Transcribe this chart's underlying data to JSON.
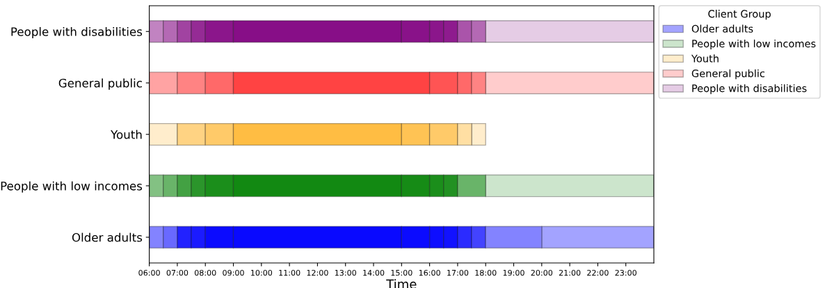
{
  "chart_data": {
    "type": "bar",
    "orientation": "horizontal",
    "xlabel": "Time",
    "legend_title": "Client Group",
    "legend": "top right",
    "grid": false,
    "categories": [
      "People with disabilities",
      "General public",
      "Youth",
      "People with low incomes",
      "Older adults"
    ],
    "xlim": [
      6,
      24
    ],
    "xticks": [
      {
        "value": 6,
        "label": "06:00"
      },
      {
        "value": 7,
        "label": "07:00"
      },
      {
        "value": 8,
        "label": "08:00"
      },
      {
        "value": 9,
        "label": "09:00"
      },
      {
        "value": 10,
        "label": "10:00"
      },
      {
        "value": 11,
        "label": "11:00"
      },
      {
        "value": 12,
        "label": "12:00"
      },
      {
        "value": 13,
        "label": "13:00"
      },
      {
        "value": 14,
        "label": "14:00"
      },
      {
        "value": 15,
        "label": "15:00"
      },
      {
        "value": 16,
        "label": "16:00"
      },
      {
        "value": 17,
        "label": "17:00"
      },
      {
        "value": 18,
        "label": "18:00"
      },
      {
        "value": 19,
        "label": "19:00"
      },
      {
        "value": 20,
        "label": "20:00"
      },
      {
        "value": 21,
        "label": "21:00"
      },
      {
        "value": 22,
        "label": "22:00"
      },
      {
        "value": 23,
        "label": "23:00"
      }
    ],
    "series": [
      {
        "name": "Older adults",
        "color": "#a3a3ff",
        "base": [
          null,
          null,
          null,
          null,
          20
        ],
        "values": [
          null,
          null,
          null,
          null,
          4
        ]
      },
      {
        "name": "People with low incomes",
        "color": "#cce5cc",
        "base": [
          null,
          null,
          null,
          18,
          null
        ],
        "values": [
          null,
          null,
          null,
          6,
          null
        ]
      },
      {
        "name": "Youth",
        "color": "#ffedcc",
        "base": [
          null,
          null,
          17.5,
          null,
          null
        ],
        "values": [
          null,
          null,
          0.5,
          null,
          null
        ]
      },
      {
        "name": "General public",
        "color": "#ffcccc",
        "base": [
          null,
          18,
          null,
          null,
          null
        ],
        "values": [
          null,
          6,
          null,
          null,
          null
        ]
      },
      {
        "name": "People with disabilities",
        "color": "#e5cce5",
        "base": [
          18,
          null,
          null,
          null,
          null
        ],
        "values": [
          6,
          null,
          null,
          null,
          null
        ]
      },
      {
        "base": [
          6,
          6,
          6,
          6,
          6
        ],
        "values": [
          0.5,
          1,
          1,
          0.5,
          0.5
        ],
        "colors": [
          "#c183c1",
          "#ffa3a3",
          "#ffedcc",
          "#83c183",
          "#8383ff"
        ]
      },
      {
        "base": [
          6.5,
          7,
          7,
          6.5,
          6.5
        ],
        "values": [
          0.5,
          1,
          1,
          0.5,
          0.5
        ],
        "colors": [
          "#b469b4",
          "#ff8383",
          "#ffd383",
          "#69b469",
          "#6969ff"
        ]
      },
      {
        "base": [
          7,
          8,
          8,
          7,
          7
        ],
        "values": [
          0.5,
          1,
          1,
          0.5,
          0.5
        ],
        "colors": [
          "#a143a1",
          "#ff6969",
          "#ffca69",
          "#43a143",
          "#2222ff"
        ]
      },
      {
        "base": [
          7.5,
          9,
          9,
          7.5,
          7.5
        ],
        "values": [
          0.5,
          7,
          6,
          0.5,
          0.5
        ],
        "colors": [
          "#952b95",
          "#ff4343",
          "#ffbd43",
          "#2b952b",
          "#1b1bff"
        ]
      },
      {
        "base": [
          8,
          16,
          15,
          8,
          8
        ],
        "values": [
          1,
          1,
          1,
          1,
          1
        ],
        "colors": [
          "#8b168b",
          "#ff5454",
          "#ffc354",
          "#1b8e1b",
          "#0b0bff"
        ]
      },
      {
        "base": [
          9,
          17,
          16,
          9,
          9
        ],
        "values": [
          6,
          0.5,
          1,
          6,
          6
        ],
        "colors": [
          "#870e87",
          "#ff6969",
          "#ffca69",
          "#128912",
          "#0909ff"
        ]
      },
      {
        "base": [
          15,
          17.5,
          17,
          15,
          15
        ],
        "values": [
          1,
          0.5,
          0.5,
          1,
          1
        ],
        "colors": [
          "#891289",
          "#ff8383",
          "#ffdfa3",
          "#168b16",
          "#0b0bff"
        ]
      },
      {
        "base": [
          16,
          null,
          null,
          16,
          16
        ],
        "values": [
          0.5,
          null,
          null,
          0.5,
          0.5
        ],
        "colors": [
          "#8b168b",
          null,
          null,
          "#1b8e1b",
          "#0e0eff"
        ]
      },
      {
        "base": [
          16.5,
          null,
          null,
          16.5,
          16.5
        ],
        "values": [
          0.5,
          null,
          null,
          0.5,
          0.5
        ],
        "colors": [
          "#8e1b8e",
          null,
          null,
          "#229122",
          "#1212ff"
        ]
      },
      {
        "base": [
          17,
          null,
          null,
          17,
          17
        ],
        "values": [
          0.5,
          null,
          null,
          1,
          0.5
        ],
        "colors": [
          "#aa54aa",
          null,
          null,
          "#69b469",
          "#2b2bff"
        ]
      },
      {
        "base": [
          17.5,
          null,
          null,
          null,
          17.5
        ],
        "values": [
          0.5,
          null,
          null,
          null,
          0.5
        ],
        "colors": [
          "#b469b4",
          null,
          null,
          null,
          "#4343ff"
        ]
      },
      {
        "base": [
          null,
          null,
          null,
          null,
          18
        ],
        "values": [
          null,
          null,
          null,
          null,
          2
        ],
        "colors": [
          null,
          null,
          null,
          null,
          "#8383ff"
        ]
      }
    ]
  }
}
